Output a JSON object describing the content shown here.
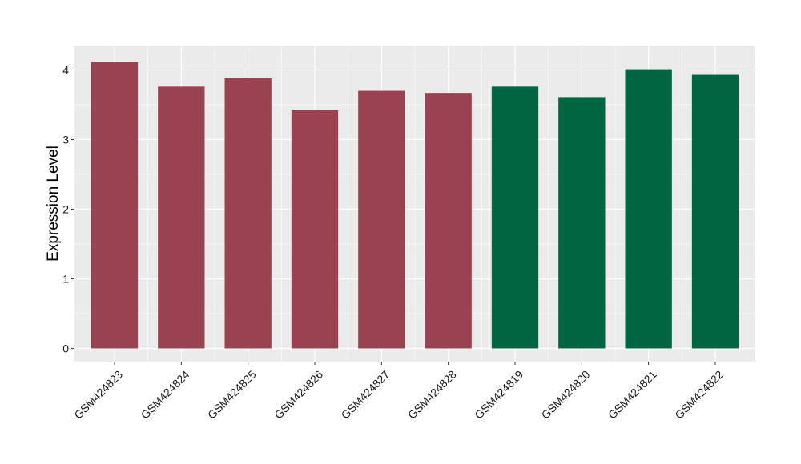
{
  "chart_data": {
    "type": "bar",
    "categories": [
      "GSM424823",
      "GSM424824",
      "GSM424825",
      "GSM424826",
      "GSM424827",
      "GSM424828",
      "GSM424819",
      "GSM424820",
      "GSM424821",
      "GSM424822"
    ],
    "values": [
      4.11,
      3.76,
      3.88,
      3.42,
      3.7,
      3.67,
      3.76,
      3.61,
      4.01,
      3.93
    ],
    "bar_colors": [
      "#9a4350",
      "#9a4350",
      "#9a4350",
      "#9a4350",
      "#9a4350",
      "#9a4350",
      "#006642",
      "#006642",
      "#006642",
      "#006642"
    ],
    "title": "",
    "xlabel": "",
    "ylabel": "Expression Level",
    "ylim": [
      -0.19,
      4.35
    ],
    "yticks": [
      0,
      1,
      2,
      3,
      4
    ],
    "ytick_labels": [
      "0",
      "1",
      "2",
      "3",
      "4"
    ],
    "grid": true,
    "panel_background": "#ebebeb",
    "grid_color": "#ffffff"
  }
}
